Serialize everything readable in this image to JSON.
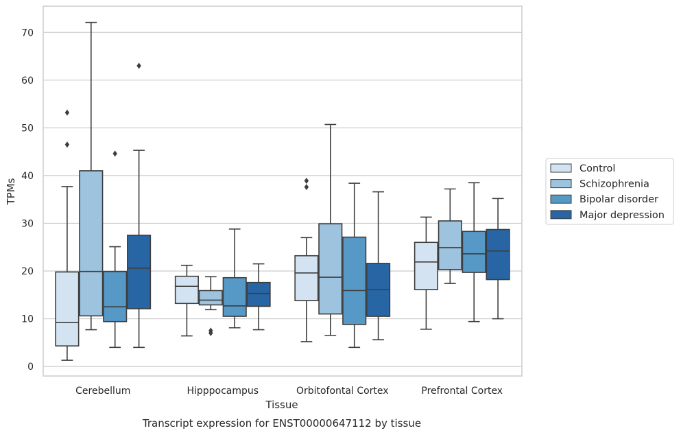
{
  "chart_data": {
    "type": "box",
    "caption": "Transcript expression for ENST00000647112 by tissue",
    "xlabel": "Tissue",
    "ylabel": "TPMs",
    "ylim": [
      -2,
      75.5
    ],
    "yticks": [
      0,
      10,
      20,
      30,
      40,
      50,
      60,
      70
    ],
    "grid": "horizontal",
    "legend_position": "right",
    "categories": [
      "Cerebellum",
      "Hipppocampus",
      "Orbitofontal Cortex",
      "Prefrontal Cortex"
    ],
    "series": [
      {
        "name": "Control",
        "color": "#d4e3f2",
        "boxes": [
          {
            "whislo": 1.3,
            "q1": 4.3,
            "med": 9.2,
            "q3": 19.8,
            "whishi": 37.7,
            "fliers": [
              46.5,
              53.2
            ]
          },
          {
            "whislo": 6.4,
            "q1": 13.2,
            "med": 16.8,
            "q3": 18.9,
            "whishi": 21.2,
            "fliers": []
          },
          {
            "whislo": 5.2,
            "q1": 13.8,
            "med": 19.6,
            "q3": 23.2,
            "whishi": 27.0,
            "fliers": [
              37.6,
              38.9
            ]
          },
          {
            "whislo": 7.8,
            "q1": 16.1,
            "med": 21.9,
            "q3": 26.0,
            "whishi": 31.3,
            "fliers": []
          }
        ]
      },
      {
        "name": "Schizophrenia",
        "color": "#9dc3de",
        "boxes": [
          {
            "whislo": 7.7,
            "q1": 10.6,
            "med": 19.9,
            "q3": 41.0,
            "whishi": 72.1,
            "fliers": []
          },
          {
            "whislo": 11.9,
            "q1": 12.9,
            "med": 13.9,
            "q3": 15.9,
            "whishi": 18.8,
            "fliers": [
              7.0,
              7.5
            ]
          },
          {
            "whislo": 6.5,
            "q1": 11.0,
            "med": 18.7,
            "q3": 29.9,
            "whishi": 50.7,
            "fliers": []
          },
          {
            "whislo": 17.4,
            "q1": 20.3,
            "med": 24.9,
            "q3": 30.5,
            "whishi": 37.2,
            "fliers": []
          }
        ]
      },
      {
        "name": "Bipolar disorder",
        "color": "#5699c6",
        "boxes": [
          {
            "whislo": 4.0,
            "q1": 9.4,
            "med": 12.5,
            "q3": 19.9,
            "whishi": 25.1,
            "fliers": [
              44.6
            ]
          },
          {
            "whislo": 8.1,
            "q1": 10.5,
            "med": 12.7,
            "q3": 18.6,
            "whishi": 28.8,
            "fliers": []
          },
          {
            "whislo": 4.0,
            "q1": 8.8,
            "med": 15.9,
            "q3": 27.1,
            "whishi": 38.4,
            "fliers": []
          },
          {
            "whislo": 9.4,
            "q1": 19.7,
            "med": 23.6,
            "q3": 28.3,
            "whishi": 38.5,
            "fliers": []
          }
        ]
      },
      {
        "name": "Major depression",
        "color": "#2865a5",
        "boxes": [
          {
            "whislo": 4.0,
            "q1": 12.1,
            "med": 20.6,
            "q3": 27.5,
            "whishi": 45.3,
            "fliers": [
              63.0
            ]
          },
          {
            "whislo": 7.7,
            "q1": 12.6,
            "med": 15.3,
            "q3": 17.6,
            "whishi": 21.5,
            "fliers": []
          },
          {
            "whislo": 5.6,
            "q1": 10.5,
            "med": 16.1,
            "q3": 21.6,
            "whishi": 36.6,
            "fliers": []
          },
          {
            "whislo": 10.0,
            "q1": 18.2,
            "med": 24.2,
            "q3": 28.7,
            "whishi": 35.2,
            "fliers": []
          }
        ]
      }
    ]
  }
}
